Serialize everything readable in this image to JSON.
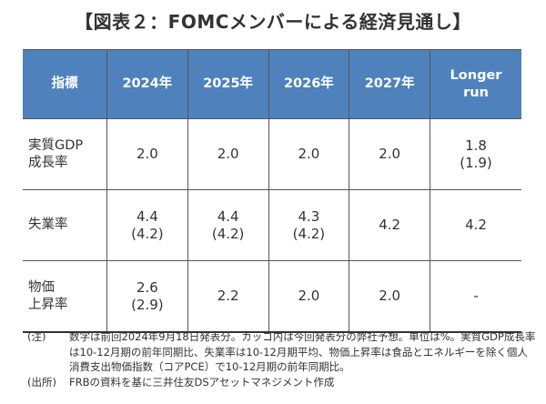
{
  "title": "【図表２：FOMCメンバーによる経済見通し】",
  "table": {
    "headers": [
      "指標",
      "2024年",
      "2025年",
      "2026年",
      "2027年",
      "Longer run"
    ],
    "rows": [
      {
        "label": "実質GDP 成長率",
        "cells": [
          "2.0",
          "2.0",
          "2.0",
          "2.0",
          "1.8 (1.9)"
        ]
      },
      {
        "label": "失業率",
        "cells": [
          "4.4 (4.2)",
          "4.4 (4.2)",
          "4.3 (4.2)",
          "4.2",
          "4.2"
        ]
      },
      {
        "label": "物価 上昇率",
        "cells": [
          "2.6 (2.9)",
          "2.2",
          "2.0",
          "2.0",
          "-"
        ]
      }
    ]
  },
  "notes": [
    {
      "label": "(注)",
      "text": "数字は前回2024年9月18日発表分。カッコ内は今回発表分の弊社予想。単位は%。実質GDP成長率は10-12月期の前年同期比、失業率は10-12月期平均、物価上昇率は食品とエネルギーを除く個人消費支出物価指数（コアPCE）で10-12月期の前年同期比。"
    },
    {
      "label": "(出所)",
      "text": "FRBの資料を基に三井住友DSアセットマネジメント作成"
    }
  ],
  "colors": {
    "header_bg": "#4f81bd",
    "header_text": "#ffffff"
  }
}
